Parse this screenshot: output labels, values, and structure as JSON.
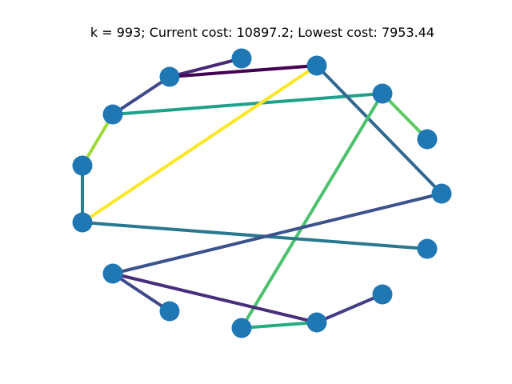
{
  "title": "k = 993; Current cost: 10897.2; Lowest cost: 7953.44",
  "node_color": "#1f77b4",
  "nodes": [
    "n0",
    "n1",
    "n2",
    "n3",
    "n4",
    "n5",
    "n6",
    "n7",
    "n8",
    "n9",
    "n10",
    "n11",
    "n12",
    "n13",
    "n14",
    "n15"
  ],
  "edges": [
    {
      "from": "n2",
      "to": "n1",
      "color": "#482878"
    },
    {
      "from": "n2",
      "to": "n3",
      "color": "#440154"
    },
    {
      "from": "n2",
      "to": "n4",
      "color": "#3e4a89"
    },
    {
      "from": "n4",
      "to": "n0",
      "color": "#1fa088"
    },
    {
      "from": "n4",
      "to": "n5",
      "color": "#a0da39"
    },
    {
      "from": "n3",
      "to": "n7",
      "color": "#31688e"
    },
    {
      "from": "n3",
      "to": "n6",
      "color": "#fde725"
    },
    {
      "from": "n0",
      "to": "n15",
      "color": "#5ec962"
    },
    {
      "from": "n0",
      "to": "n14",
      "color": "#4ac16d"
    },
    {
      "from": "n5",
      "to": "n6",
      "color": "#277f8e"
    },
    {
      "from": "n6",
      "to": "n8",
      "color": "#2a788e"
    },
    {
      "from": "n9",
      "to": "n7",
      "color": "#3b528b"
    },
    {
      "from": "n9",
      "to": "n10",
      "color": "#3e4989"
    },
    {
      "from": "n9",
      "to": "n13",
      "color": "#472d7b"
    },
    {
      "from": "n14",
      "to": "n13",
      "color": "#26ad81"
    },
    {
      "from": "n13",
      "to": "n12",
      "color": "#433e85"
    }
  ]
}
